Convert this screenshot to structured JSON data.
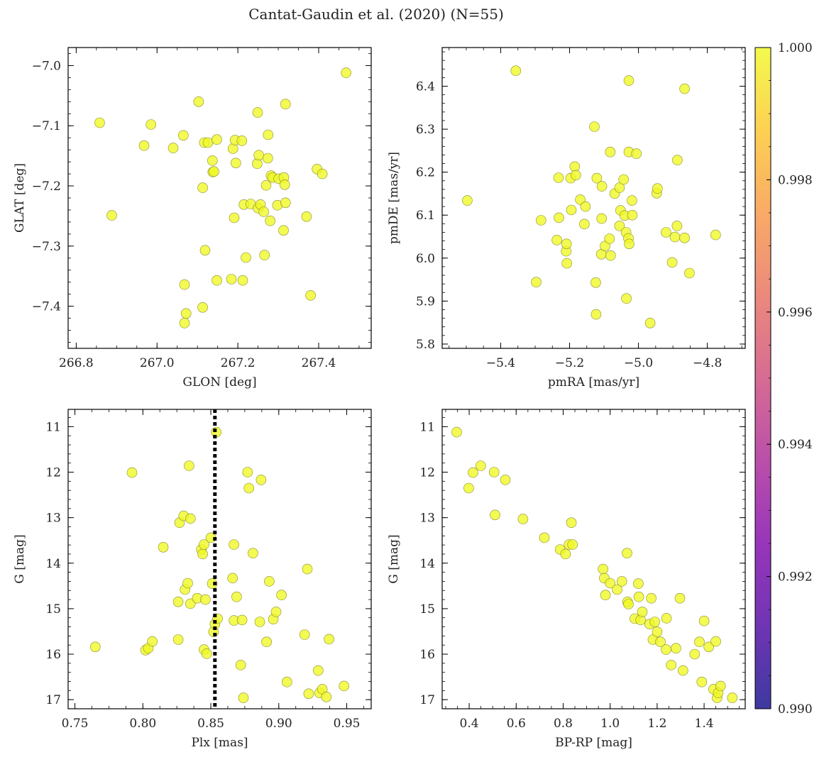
{
  "figure": {
    "title": "Cantat-Gaudin et al. (2020) (N=55)"
  },
  "colorbar": {
    "min": 0.99,
    "max": 1.0,
    "ticks": [
      "1.000",
      "0.998",
      "0.996",
      "0.994",
      "0.992",
      "0.990"
    ],
    "colormap": "plasma"
  },
  "colors": {
    "point_fill": "#f0f921",
    "point_edge": "#8a8a30",
    "axis": "#000000"
  },
  "chart_data": [
    {
      "type": "scatter",
      "id": "glon-glat",
      "xlabel": "GLON [deg]",
      "ylabel": "GLAT [deg]",
      "xlim": [
        266.78,
        267.53
      ],
      "ylim": [
        -7.47,
        -6.97
      ],
      "xticks": [
        266.8,
        267.0,
        267.2,
        267.4
      ],
      "xtick_labels": [
        "266.8",
        "267.0",
        "267.2",
        "267.4"
      ],
      "yticks": [
        -7.0,
        -7.1,
        -7.2,
        -7.3,
        -7.4
      ],
      "ytick_labels": [
        "−7.0",
        "−7.1",
        "−7.2",
        "−7.3",
        "−7.4"
      ],
      "points": [
        [
          266.858,
          -7.095
        ],
        [
          266.888,
          -7.249
        ],
        [
          266.968,
          -7.133
        ],
        [
          266.985,
          -7.098
        ],
        [
          267.04,
          -7.137
        ],
        [
          267.065,
          -7.116
        ],
        [
          267.068,
          -7.364
        ],
        [
          267.068,
          -7.428
        ],
        [
          267.072,
          -7.412
        ],
        [
          267.103,
          -7.06
        ],
        [
          267.113,
          -7.402
        ],
        [
          267.113,
          -7.203
        ],
        [
          267.117,
          -7.128
        ],
        [
          267.119,
          -7.307
        ],
        [
          267.126,
          -7.128
        ],
        [
          267.137,
          -7.158
        ],
        [
          267.138,
          -7.177
        ],
        [
          267.141,
          -7.176
        ],
        [
          267.148,
          -7.123
        ],
        [
          267.148,
          -7.357
        ],
        [
          267.184,
          -7.355
        ],
        [
          267.188,
          -7.138
        ],
        [
          267.191,
          -7.253
        ],
        [
          267.193,
          -7.124
        ],
        [
          267.195,
          -7.162
        ],
        [
          267.21,
          -7.125
        ],
        [
          267.212,
          -7.357
        ],
        [
          267.215,
          -7.231
        ],
        [
          267.22,
          -7.319
        ],
        [
          267.232,
          -7.23
        ],
        [
          267.248,
          -7.163
        ],
        [
          267.249,
          -7.078
        ],
        [
          267.25,
          -7.237
        ],
        [
          267.252,
          -7.149
        ],
        [
          267.256,
          -7.231
        ],
        [
          267.264,
          -7.243
        ],
        [
          267.266,
          -7.315
        ],
        [
          267.27,
          -7.199
        ],
        [
          267.274,
          -7.154
        ],
        [
          267.275,
          -7.115
        ],
        [
          267.28,
          -7.258
        ],
        [
          267.282,
          -7.183
        ],
        [
          267.286,
          -7.186
        ],
        [
          267.298,
          -7.232
        ],
        [
          267.301,
          -7.188
        ],
        [
          267.313,
          -7.274
        ],
        [
          267.314,
          -7.186
        ],
        [
          267.316,
          -7.198
        ],
        [
          267.318,
          -7.064
        ],
        [
          267.318,
          -7.228
        ],
        [
          267.37,
          -7.251
        ],
        [
          267.38,
          -7.382
        ],
        [
          267.396,
          -7.172
        ],
        [
          267.409,
          -7.18
        ],
        [
          267.468,
          -7.012
        ]
      ]
    },
    {
      "type": "scatter",
      "id": "pmra-pmde",
      "xlabel": "pmRA [mas/yr]",
      "ylabel": "pmDE [mas/yr]",
      "xlim": [
        -5.57,
        -4.69
      ],
      "ylim": [
        5.79,
        6.49
      ],
      "xticks": [
        -5.4,
        -5.2,
        -5.0,
        -4.8
      ],
      "xtick_labels": [
        "−5.4",
        "−5.2",
        "−5.0",
        "−4.8"
      ],
      "yticks": [
        5.8,
        5.9,
        6.0,
        6.1,
        6.2,
        6.3,
        6.4
      ],
      "ytick_labels": [
        "5.8",
        "5.9",
        "6.0",
        "6.1",
        "6.2",
        "6.3",
        "6.4"
      ],
      "points": [
        [
          -5.497,
          6.134
        ],
        [
          -5.356,
          6.436
        ],
        [
          -5.297,
          5.944
        ],
        [
          -5.283,
          6.088
        ],
        [
          -5.237,
          6.042
        ],
        [
          -5.232,
          6.187
        ],
        [
          -5.231,
          6.094
        ],
        [
          -5.21,
          6.016
        ],
        [
          -5.209,
          6.033
        ],
        [
          -5.208,
          5.988
        ],
        [
          -5.197,
          6.186
        ],
        [
          -5.195,
          6.112
        ],
        [
          -5.185,
          6.213
        ],
        [
          -5.182,
          6.193
        ],
        [
          -5.169,
          6.136
        ],
        [
          -5.157,
          6.079
        ],
        [
          -5.154,
          6.12
        ],
        [
          -5.128,
          6.306
        ],
        [
          -5.124,
          5.943
        ],
        [
          -5.123,
          5.869
        ],
        [
          -5.121,
          6.186
        ],
        [
          -5.108,
          6.009
        ],
        [
          -5.107,
          6.092
        ],
        [
          -5.106,
          6.167
        ],
        [
          -5.097,
          6.028
        ],
        [
          -5.084,
          6.045
        ],
        [
          -5.082,
          6.247
        ],
        [
          -5.081,
          6.006
        ],
        [
          -5.069,
          6.15
        ],
        [
          -5.055,
          6.075
        ],
        [
          -5.055,
          6.164
        ],
        [
          -5.052,
          6.111
        ],
        [
          -5.043,
          6.183
        ],
        [
          -5.04,
          6.099
        ],
        [
          -5.036,
          6.06
        ],
        [
          -5.035,
          5.906
        ],
        [
          -5.029,
          6.046
        ],
        [
          -5.028,
          6.247
        ],
        [
          -5.028,
          6.413
        ],
        [
          -5.027,
          6.033
        ],
        [
          -5.019,
          6.134
        ],
        [
          -5.018,
          6.1
        ],
        [
          -5.006,
          6.243
        ],
        [
          -4.966,
          5.849
        ],
        [
          -4.947,
          6.151
        ],
        [
          -4.945,
          6.162
        ],
        [
          -4.92,
          6.06
        ],
        [
          -4.902,
          5.99
        ],
        [
          -4.894,
          6.049
        ],
        [
          -4.888,
          6.075
        ],
        [
          -4.887,
          6.228
        ],
        [
          -4.866,
          6.394
        ],
        [
          -4.866,
          6.047
        ],
        [
          -4.852,
          5.965
        ],
        [
          -4.776,
          6.054
        ]
      ]
    },
    {
      "type": "scatter",
      "id": "plx-g",
      "xlabel": "Plx [mas]",
      "ylabel": "G [mag]",
      "xlim": [
        0.745,
        0.968
      ],
      "ylim": [
        17.2,
        10.62
      ],
      "xticks": [
        0.75,
        0.8,
        0.85,
        0.9,
        0.95
      ],
      "xtick_labels": [
        "0.75",
        "0.80",
        "0.85",
        "0.90",
        "0.95"
      ],
      "yticks": [
        11,
        12,
        13,
        14,
        15,
        16,
        17
      ],
      "ytick_labels": [
        "11",
        "12",
        "13",
        "14",
        "15",
        "16",
        "17"
      ],
      "vline": 0.853,
      "points": [
        [
          0.765,
          15.84
        ],
        [
          0.792,
          12.01
        ],
        [
          0.802,
          15.91
        ],
        [
          0.804,
          15.87
        ],
        [
          0.807,
          15.72
        ],
        [
          0.815,
          13.65
        ],
        [
          0.826,
          15.68
        ],
        [
          0.826,
          14.85
        ],
        [
          0.827,
          13.11
        ],
        [
          0.83,
          12.96
        ],
        [
          0.831,
          14.58
        ],
        [
          0.833,
          14.44
        ],
        [
          0.834,
          11.86
        ],
        [
          0.835,
          14.89
        ],
        [
          0.835,
          13.02
        ],
        [
          0.84,
          14.77
        ],
        [
          0.843,
          13.7
        ],
        [
          0.844,
          13.8
        ],
        [
          0.845,
          13.59
        ],
        [
          0.845,
          15.9
        ],
        [
          0.846,
          14.8
        ],
        [
          0.847,
          15.99
        ],
        [
          0.85,
          13.44
        ],
        [
          0.851,
          14.45
        ],
        [
          0.852,
          15.51
        ],
        [
          0.853,
          15.34
        ],
        [
          0.854,
          11.12
        ],
        [
          0.855,
          15.22
        ],
        [
          0.866,
          14.33
        ],
        [
          0.867,
          15.26
        ],
        [
          0.867,
          13.59
        ],
        [
          0.869,
          14.74
        ],
        [
          0.872,
          16.24
        ],
        [
          0.873,
          15.25
        ],
        [
          0.874,
          16.96
        ],
        [
          0.877,
          12.0
        ],
        [
          0.878,
          12.35
        ],
        [
          0.881,
          13.78
        ],
        [
          0.886,
          15.29
        ],
        [
          0.887,
          12.17
        ],
        [
          0.891,
          15.73
        ],
        [
          0.893,
          14.4
        ],
        [
          0.896,
          15.23
        ],
        [
          0.898,
          15.07
        ],
        [
          0.902,
          14.7
        ],
        [
          0.906,
          16.61
        ],
        [
          0.919,
          15.57
        ],
        [
          0.921,
          14.13
        ],
        [
          0.922,
          16.87
        ],
        [
          0.929,
          16.36
        ],
        [
          0.93,
          16.85
        ],
        [
          0.932,
          16.77
        ],
        [
          0.935,
          16.94
        ],
        [
          0.937,
          15.67
        ],
        [
          0.948,
          16.7
        ]
      ]
    },
    {
      "type": "scatter",
      "id": "bprp-g",
      "xlabel": "BP-RP [mag]",
      "ylabel": "G [mag]",
      "xlim": [
        0.285,
        1.575
      ],
      "ylim": [
        17.2,
        10.62
      ],
      "xticks": [
        0.4,
        0.6,
        0.8,
        1.0,
        1.2,
        1.4
      ],
      "xtick_labels": [
        "0.4",
        "0.6",
        "0.8",
        "1.0",
        "1.2",
        "1.4"
      ],
      "yticks": [
        11,
        12,
        13,
        14,
        15,
        16,
        17
      ],
      "ytick_labels": [
        "11",
        "12",
        "13",
        "14",
        "15",
        "16",
        "17"
      ],
      "points": [
        [
          0.347,
          11.12
        ],
        [
          0.398,
          12.35
        ],
        [
          0.416,
          12.01
        ],
        [
          0.449,
          11.86
        ],
        [
          0.506,
          12.0
        ],
        [
          0.51,
          12.94
        ],
        [
          0.554,
          12.17
        ],
        [
          0.629,
          13.03
        ],
        [
          0.72,
          13.44
        ],
        [
          0.787,
          13.7
        ],
        [
          0.81,
          13.8
        ],
        [
          0.825,
          13.59
        ],
        [
          0.835,
          13.11
        ],
        [
          0.84,
          13.59
        ],
        [
          0.97,
          14.13
        ],
        [
          0.975,
          14.33
        ],
        [
          0.98,
          14.7
        ],
        [
          1.0,
          14.44
        ],
        [
          1.03,
          14.58
        ],
        [
          1.05,
          14.4
        ],
        [
          1.072,
          13.78
        ],
        [
          1.074,
          14.85
        ],
        [
          1.078,
          14.9
        ],
        [
          1.105,
          15.22
        ],
        [
          1.12,
          14.45
        ],
        [
          1.122,
          14.74
        ],
        [
          1.13,
          15.25
        ],
        [
          1.137,
          15.07
        ],
        [
          1.168,
          15.34
        ],
        [
          1.175,
          14.77
        ],
        [
          1.182,
          15.68
        ],
        [
          1.19,
          15.29
        ],
        [
          1.2,
          15.51
        ],
        [
          1.214,
          15.73
        ],
        [
          1.238,
          15.9
        ],
        [
          1.24,
          15.21
        ],
        [
          1.26,
          16.24
        ],
        [
          1.28,
          15.87
        ],
        [
          1.297,
          14.77
        ],
        [
          1.31,
          16.36
        ],
        [
          1.36,
          16.0
        ],
        [
          1.38,
          15.73
        ],
        [
          1.39,
          16.61
        ],
        [
          1.4,
          15.27
        ],
        [
          1.42,
          15.84
        ],
        [
          1.44,
          16.77
        ],
        [
          1.45,
          15.72
        ],
        [
          1.455,
          16.96
        ],
        [
          1.46,
          16.85
        ],
        [
          1.47,
          16.7
        ],
        [
          1.52,
          16.96
        ]
      ]
    }
  ]
}
